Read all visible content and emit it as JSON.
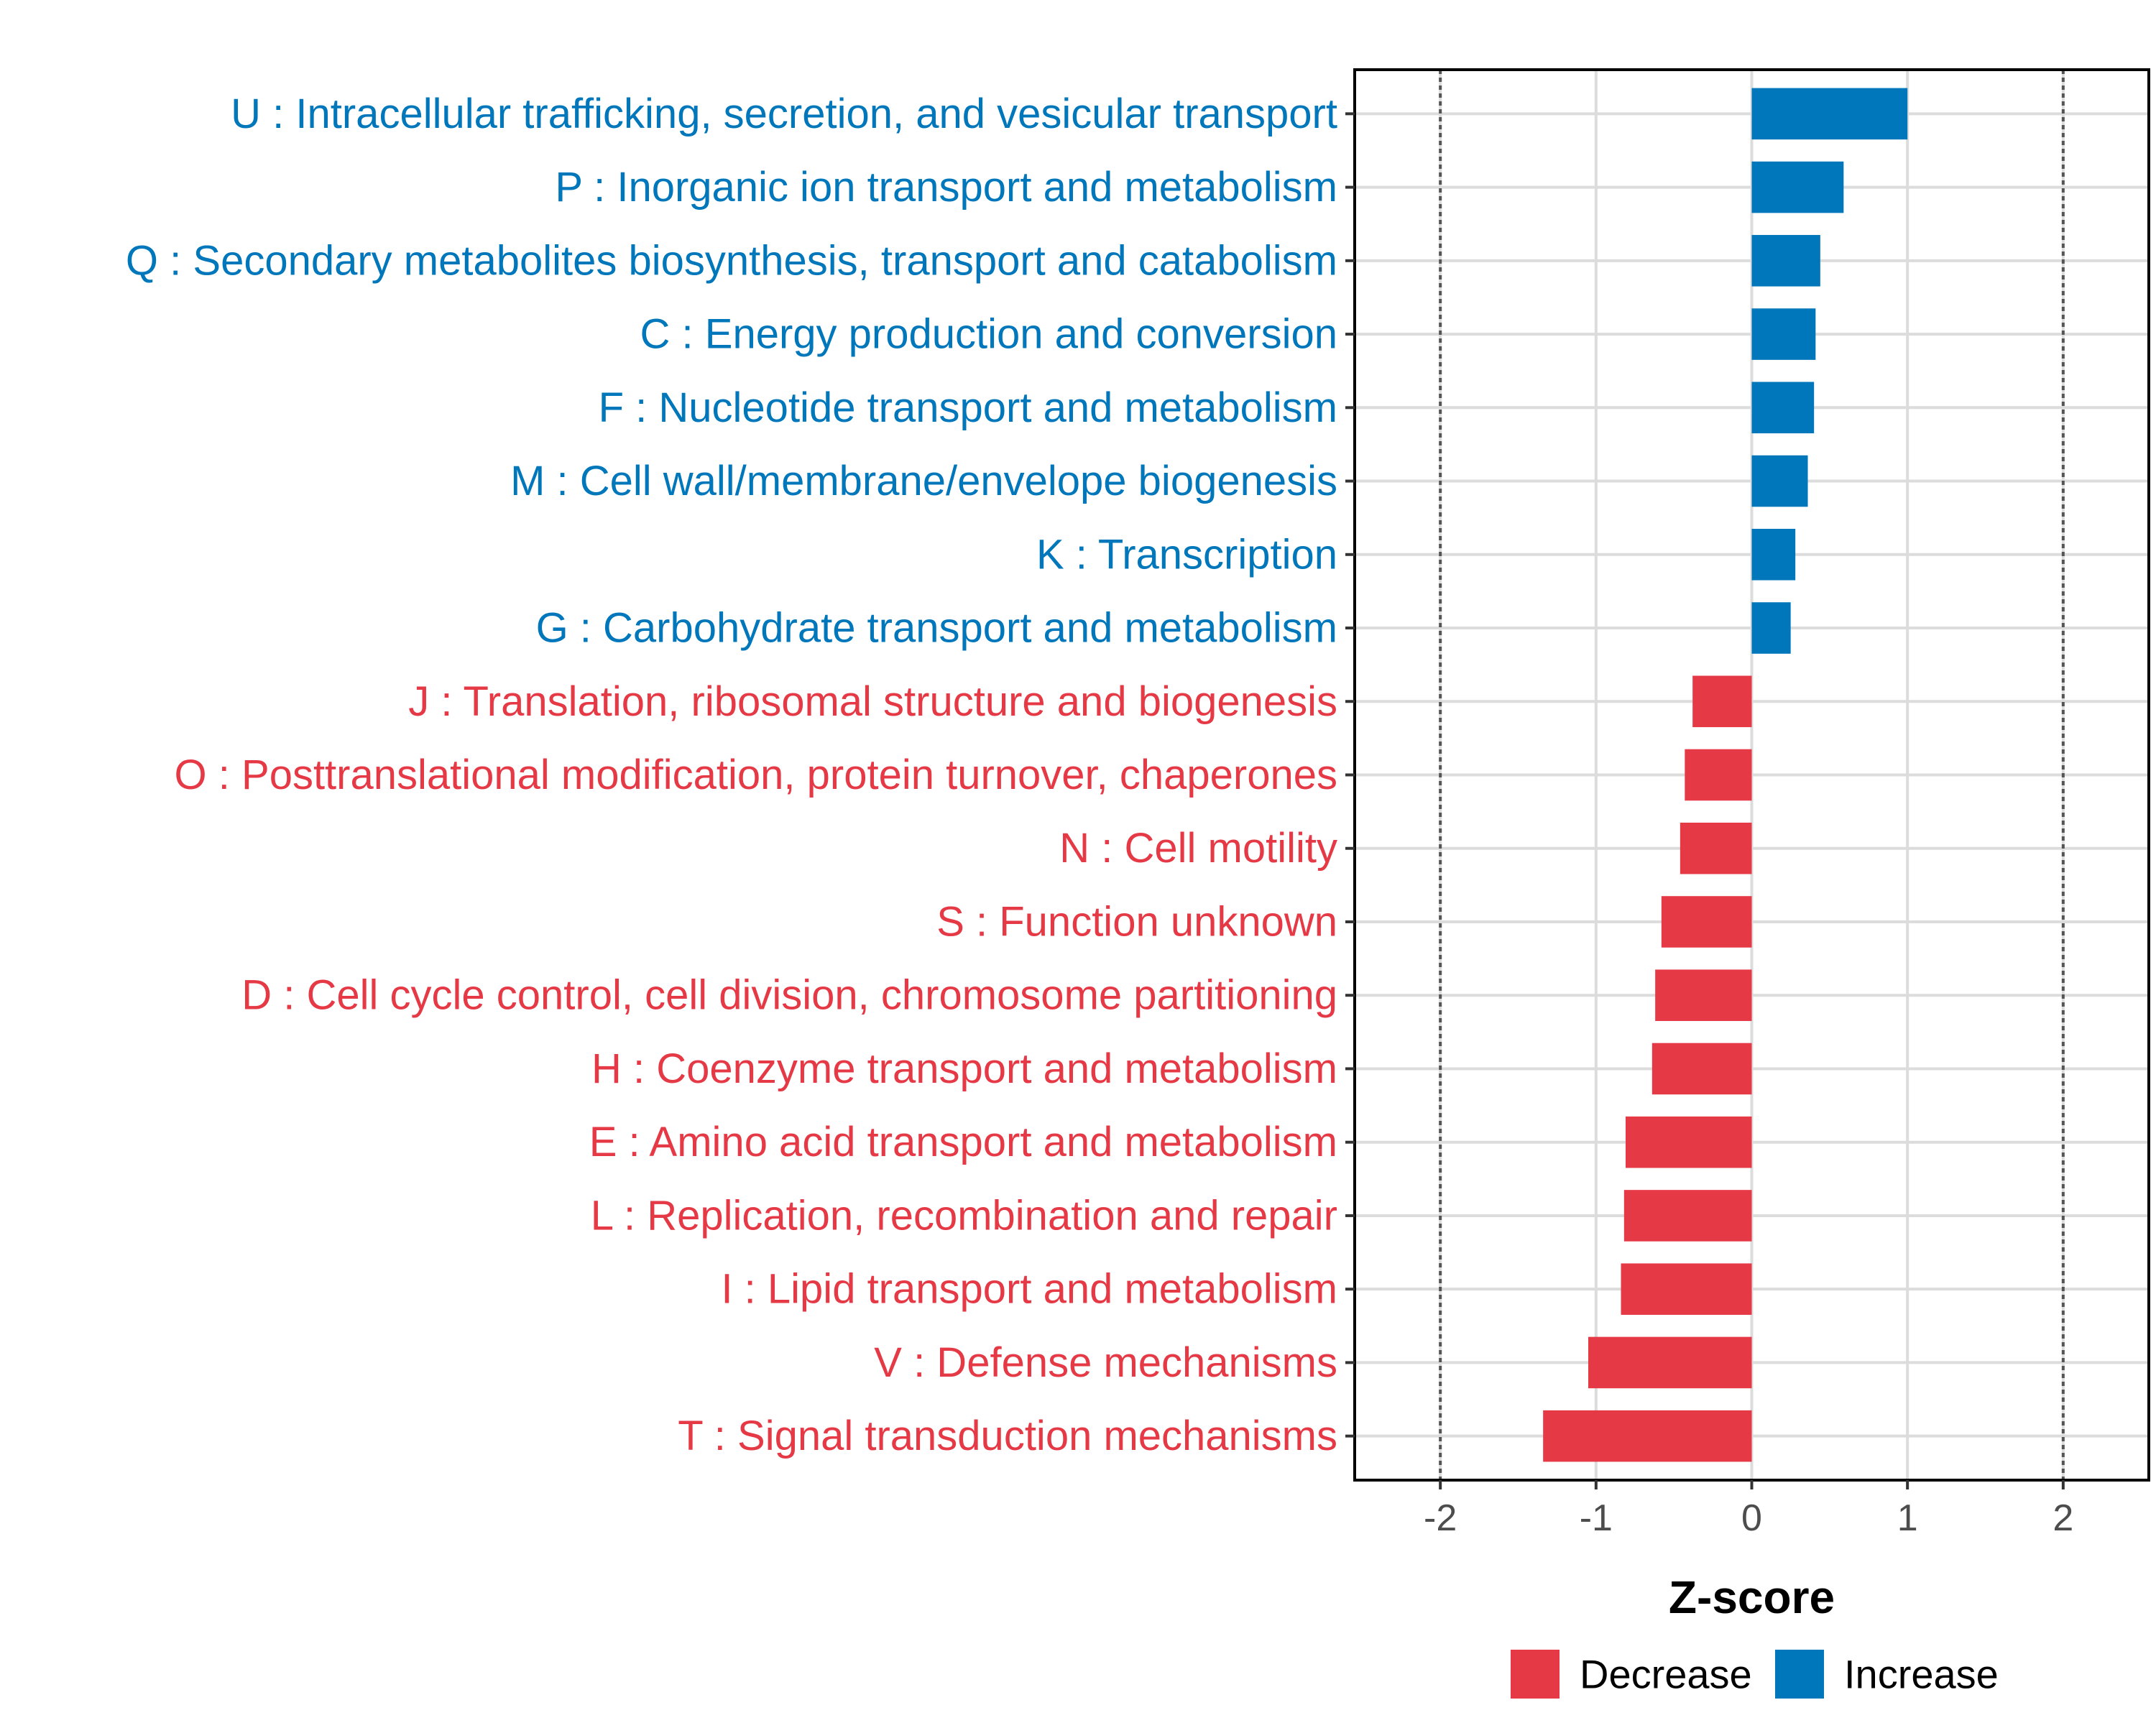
{
  "chart_data": {
    "type": "bar",
    "orientation": "horizontal",
    "xlabel": "Z-score",
    "xlim": [
      -2.55,
      2.55
    ],
    "xticks": [
      -2,
      -1,
      0,
      1,
      2
    ],
    "xtick_labels": [
      "-2",
      "-1",
      "0",
      "1",
      "2"
    ],
    "reference_lines": [
      -2,
      2
    ],
    "grid": true,
    "legend_position": "bottom",
    "colors": {
      "Decrease": "#E63946",
      "Increase": "#0077BB"
    },
    "legend": [
      {
        "name": "Decrease",
        "color": "#E63946"
      },
      {
        "name": "Increase",
        "color": "#0077BB"
      }
    ],
    "categories": [
      "U : Intracellular trafficking, secretion, and vesicular transport",
      "P : Inorganic ion transport and metabolism",
      "Q : Secondary metabolites biosynthesis, transport and catabolism",
      "C : Energy production and conversion",
      "F : Nucleotide transport and metabolism",
      "M : Cell wall/membrane/envelope biogenesis",
      "K : Transcription",
      "G : Carbohydrate transport and metabolism",
      "J : Translation, ribosomal structure and biogenesis",
      "O : Posttranslational modification, protein turnover, chaperones",
      "N : Cell motility",
      "S : Function unknown",
      "D : Cell cycle control, cell division, chromosome partitioning",
      "H : Coenzyme transport and metabolism",
      "E : Amino acid transport and metabolism",
      "L : Replication, recombination and repair",
      "I : Lipid transport and metabolism",
      "V : Defense mechanisms",
      "T : Signal transduction mechanisms"
    ],
    "values": [
      1.0,
      0.59,
      0.44,
      0.41,
      0.4,
      0.36,
      0.28,
      0.25,
      -0.38,
      -0.43,
      -0.46,
      -0.58,
      -0.62,
      -0.64,
      -0.81,
      -0.82,
      -0.84,
      -1.05,
      -1.34
    ],
    "groups": [
      "Increase",
      "Increase",
      "Increase",
      "Increase",
      "Increase",
      "Increase",
      "Increase",
      "Increase",
      "Decrease",
      "Decrease",
      "Decrease",
      "Decrease",
      "Decrease",
      "Decrease",
      "Decrease",
      "Decrease",
      "Decrease",
      "Decrease",
      "Decrease"
    ]
  }
}
